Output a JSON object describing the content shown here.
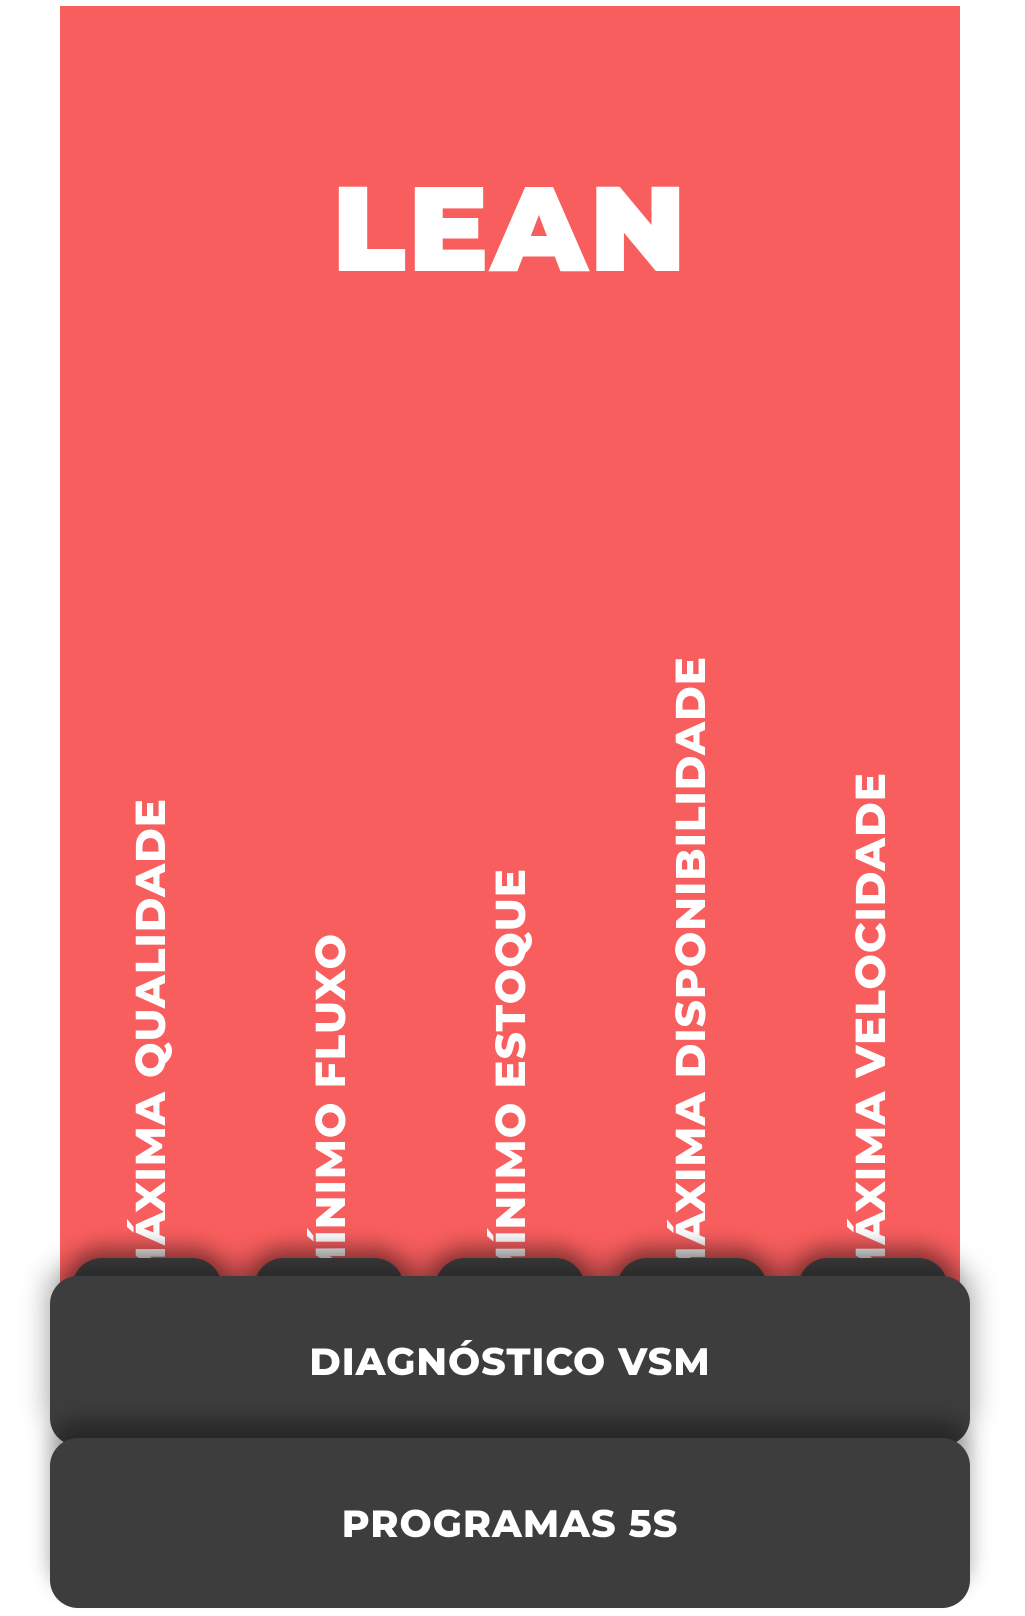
{
  "colors": {
    "red": "#f85e5e",
    "dark": "#3d3d3d",
    "white": "#ffffff"
  },
  "title": {
    "text": "LEAN",
    "fontsize": 120
  },
  "pillars": {
    "fontsize": 42,
    "items": [
      "MÁXIMA QUALIDADE",
      "MÍNIMO FLUXO",
      "MÍNIMO ESTOQUE",
      "MÁXIMA DISPONIBILIDADE",
      "MÁXIMA VELOCIDADE"
    ]
  },
  "footer": {
    "fontsize": 38,
    "block1": "DIAGNÓSTICO VSM",
    "block2": "PROGRAMAS 5S"
  }
}
